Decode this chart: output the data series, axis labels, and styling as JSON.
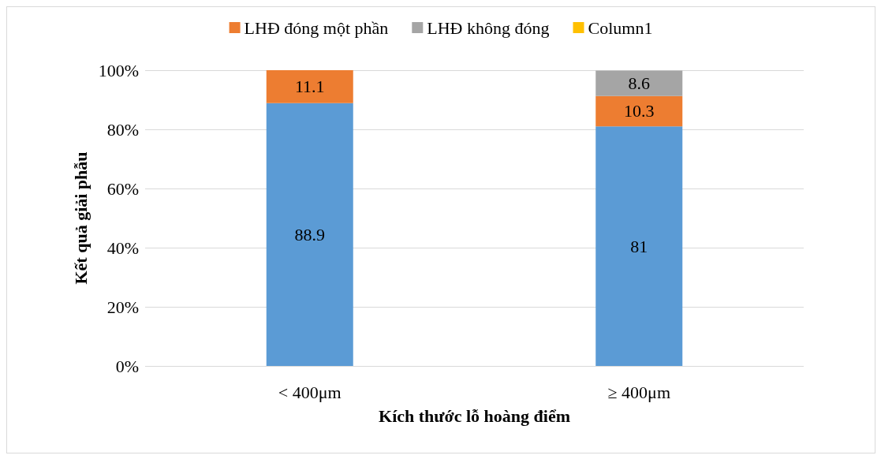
{
  "chart_data": {
    "type": "bar",
    "stacked": true,
    "xlabel": "Kích thước lỗ hoàng điểm",
    "ylabel": "Kết quả giải phẫu",
    "categories": [
      "< 400μm",
      "≥ 400μm"
    ],
    "series": [
      {
        "color": "#5b9bd5",
        "values": [
          88.9,
          81
        ]
      },
      {
        "name": "LHĐ đóng một phần",
        "color": "#ed7d31",
        "values": [
          11.1,
          10.3
        ]
      },
      {
        "name": "LHĐ không đóng",
        "color": "#a5a5a5",
        "values": [
          null,
          8.6
        ]
      },
      {
        "name": "Column1",
        "color": "#ffc000",
        "values": [
          null,
          null
        ]
      }
    ],
    "ylim": [
      0,
      100
    ],
    "yticks": [
      {
        "value": 0,
        "label": "0%"
      },
      {
        "value": 20,
        "label": "20%"
      },
      {
        "value": 40,
        "label": "40%"
      },
      {
        "value": 60,
        "label": "60%"
      },
      {
        "value": 80,
        "label": "80%"
      },
      {
        "value": 100,
        "label": "100%"
      }
    ],
    "grid": "y",
    "legend": "top",
    "data_labels": true
  }
}
